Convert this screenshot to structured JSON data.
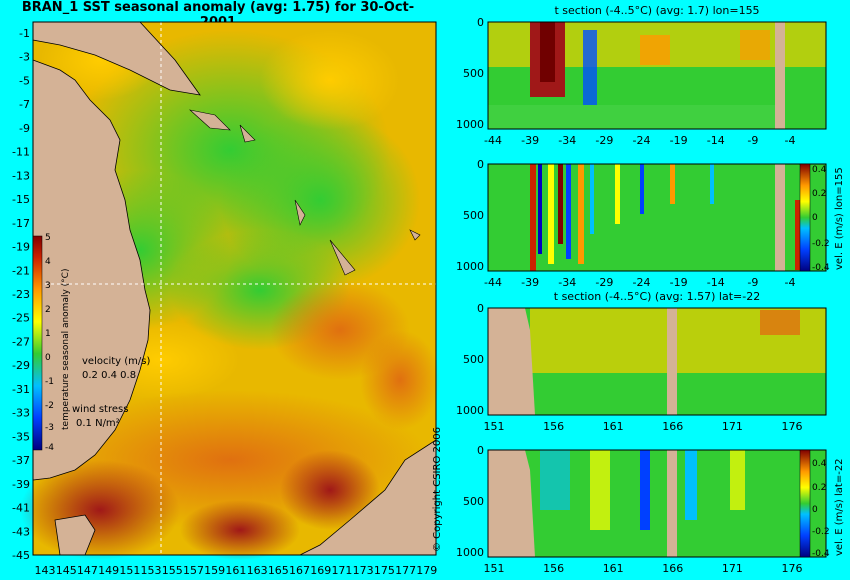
{
  "chart_data": [
    {
      "type": "heatmap",
      "title": "BRAN_1  SST seasonal anomaly (avg: 1.75) for 30-Oct-2001",
      "x_ticks": [
        "143",
        "145",
        "147",
        "149",
        "151",
        "153",
        "155",
        "157",
        "159",
        "161",
        "163",
        "165",
        "167",
        "169",
        "171",
        "173",
        "175",
        "177",
        "179"
      ],
      "y_ticks": [
        "-1",
        "-3",
        "-5",
        "-7",
        "-9",
        "-11",
        "-13",
        "-15",
        "-17",
        "-19",
        "-21",
        "-23",
        "-25",
        "-27",
        "-29",
        "-31",
        "-33",
        "-35",
        "-37",
        "-39",
        "-41",
        "-43",
        "-45"
      ],
      "colorbar": {
        "label": "temperature seasonal anomaly (°C)",
        "ticks": [
          "5",
          "4",
          "3",
          "2",
          "1",
          "0",
          "-1",
          "-2",
          "-3",
          "-4"
        ]
      },
      "velocity_legend": {
        "label": "velocity (m/s)",
        "values": "0.2 0.4 0.8"
      },
      "wind_legend": {
        "label": "wind stress",
        "value": "0.1 N/m²"
      },
      "crosshair": {
        "lon": 155,
        "lat": -22
      }
    },
    {
      "type": "heatmap",
      "title": "t section (-4..5°C) (avg: 1.7) lon=155",
      "x_ticks": [
        "-44",
        "-39",
        "-34",
        "-29",
        "-24",
        "-19",
        "-14",
        "-9",
        "-4"
      ],
      "y_ticks": [
        "0",
        "500",
        "1000"
      ]
    },
    {
      "type": "heatmap",
      "title": "",
      "x_ticks": [
        "-44",
        "-39",
        "-34",
        "-29",
        "-24",
        "-19",
        "-14",
        "-9",
        "-4"
      ],
      "y_ticks": [
        "0",
        "500",
        "1000"
      ],
      "colorbar": {
        "label": "vel. E (m/s) lon=155",
        "ticks": [
          "0.4",
          "0.2",
          "0",
          "-0.2",
          "-0.4"
        ]
      }
    },
    {
      "type": "heatmap",
      "title": "t section (-4..5°C) (avg: 1.57) lat=-22",
      "x_ticks": [
        "151",
        "156",
        "161",
        "166",
        "171",
        "176"
      ],
      "y_ticks": [
        "0",
        "500",
        "1000"
      ]
    },
    {
      "type": "heatmap",
      "title": "",
      "x_ticks": [
        "151",
        "156",
        "161",
        "166",
        "171",
        "176"
      ],
      "y_ticks": [
        "0",
        "500",
        "1000"
      ],
      "colorbar": {
        "label": "vel. E (m/s) lat=-22",
        "ticks": [
          "0.4",
          "0.2",
          "0",
          "-0.2",
          "-0.4"
        ]
      }
    }
  ],
  "copyright": "© Copyright CSIRO 2006",
  "colors": {
    "background": "#00ffff",
    "land": "#d4b296",
    "map_base": "#e6b800",
    "panel_base": "#33cc33"
  }
}
